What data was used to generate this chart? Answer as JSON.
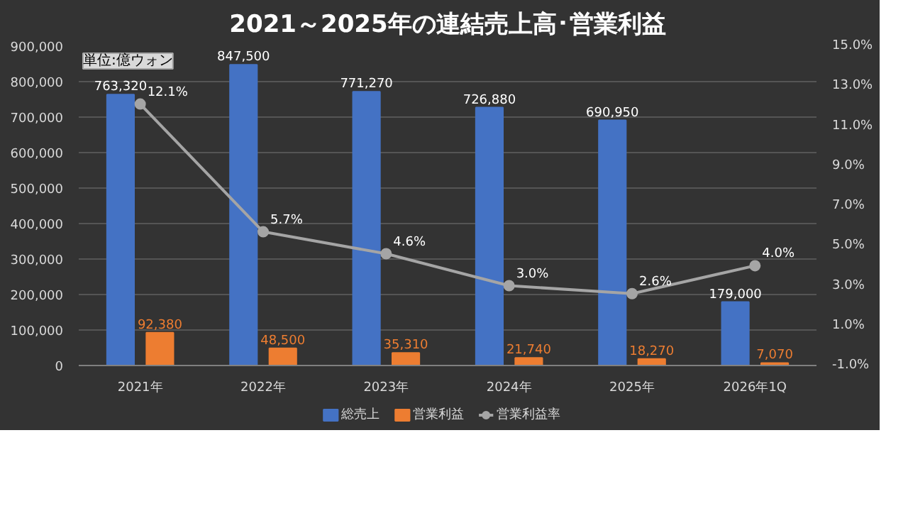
{
  "chart_data": {
    "type": "bar",
    "title": "2021～2025年の連結売上高･営業利益",
    "annotations": [
      "単位:億ウォン"
    ],
    "categories": [
      "2021年",
      "2022年",
      "2023年",
      "2024年",
      "2025年",
      "2026年1Q"
    ],
    "series": [
      {
        "name": "総売上",
        "color": "#4472c4",
        "values": [
          763320,
          847500,
          771270,
          726880,
          690950,
          179000
        ],
        "value_labels": [
          "763,320",
          "847,500",
          "771,270",
          "726,880",
          "690,950",
          "179,000"
        ]
      },
      {
        "name": "営業利益",
        "color": "#ed7d31",
        "values": [
          92380,
          48500,
          35310,
          21740,
          18270,
          7070
        ],
        "value_labels": [
          "92,380",
          "48,500",
          "35,310",
          "21,740",
          "18,270",
          "7,070"
        ]
      },
      {
        "name": "営業利益率",
        "type": "line",
        "axis": "y2",
        "color": "#a5a5a5",
        "marker": "circle",
        "values": [
          12.1,
          5.7,
          4.6,
          3.0,
          2.6,
          4.0
        ],
        "value_labels": [
          "12.1%",
          "5.7%",
          "4.6%",
          "3.0%",
          "2.6%",
          "4.0%"
        ]
      }
    ],
    "ylim": [
      0,
      900000
    ],
    "yticks": [
      {
        "value": 0,
        "label": "0"
      },
      {
        "value": 100000,
        "label": "100,000"
      },
      {
        "value": 200000,
        "label": "200,000"
      },
      {
        "value": 300000,
        "label": "300,000"
      },
      {
        "value": 400000,
        "label": "400,000"
      },
      {
        "value": 500000,
        "label": "500,000"
      },
      {
        "value": 600000,
        "label": "600,000"
      },
      {
        "value": 700000,
        "label": "700,000"
      },
      {
        "value": 800000,
        "label": "800,000"
      },
      {
        "value": 900000,
        "label": "900,000"
      }
    ],
    "y2lim": [
      -1,
      15
    ],
    "y2ticks": [
      {
        "value": -1,
        "label": "-1.0%"
      },
      {
        "value": 1,
        "label": "1.0%"
      },
      {
        "value": 3,
        "label": "3.0%"
      },
      {
        "value": 5,
        "label": "5.0%"
      },
      {
        "value": 7,
        "label": "7.0%"
      },
      {
        "value": 9,
        "label": "9.0%"
      },
      {
        "value": 11,
        "label": "11.0%"
      },
      {
        "value": 13,
        "label": "13.0%"
      },
      {
        "value": 15,
        "label": "15.0%"
      }
    ],
    "grid": "y",
    "legend": "bottom"
  }
}
